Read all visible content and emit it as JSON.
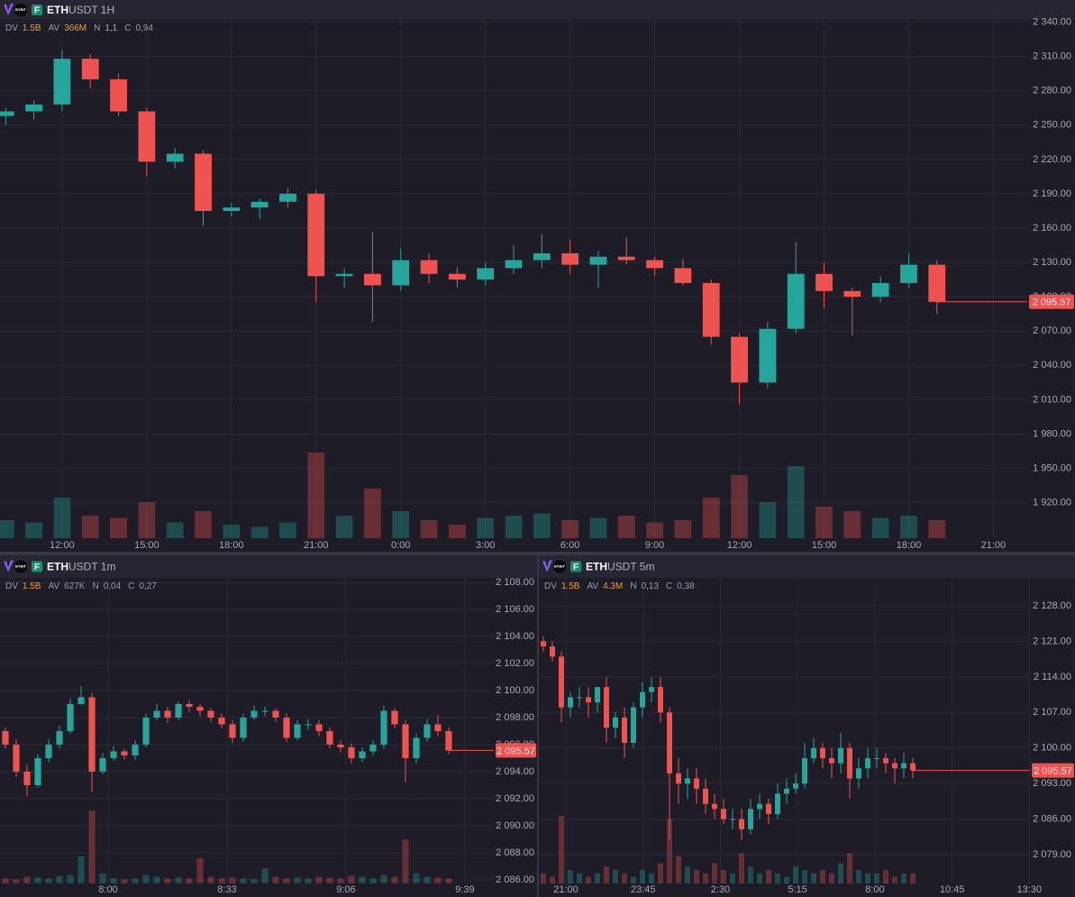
{
  "chart_data": [
    {
      "type": "candlestick",
      "exchange_logo": "BYBIT",
      "badge": "F",
      "symbol": "ETH",
      "title_rest": "USDT 1H",
      "stats": [
        {
          "label": "DV",
          "value": "1.5B",
          "color": "#f0a030"
        },
        {
          "label": "AV",
          "value": "366M",
          "color": "#f0a030"
        },
        {
          "label": "N",
          "value": "1,1",
          "color": "#f0a030"
        },
        {
          "label": "C",
          "value": "0,94",
          "color": "#9a9aaa"
        }
      ],
      "up_color": "#26a69a",
      "down_color": "#ef5350",
      "grid": true,
      "open": [
        2258,
        2262,
        2268,
        2308,
        2290,
        2262,
        2218,
        2225,
        2175,
        2178,
        2183,
        2190,
        2118,
        2120,
        2110,
        2132,
        2120,
        2115,
        2125,
        2132,
        2138,
        2128,
        2135,
        2132,
        2125,
        2112,
        2065,
        2025,
        2072,
        2120,
        2105,
        2100,
        2112,
        2128
      ],
      "high": [
        2265,
        2272,
        2316,
        2312,
        2295,
        2265,
        2230,
        2228,
        2182,
        2186,
        2195,
        2193,
        2125,
        2156,
        2142,
        2138,
        2126,
        2130,
        2145,
        2155,
        2150,
        2140,
        2152,
        2135,
        2133,
        2115,
        2068,
        2078,
        2148,
        2130,
        2108,
        2118,
        2138,
        2132
      ],
      "low": [
        2250,
        2255,
        2262,
        2282,
        2258,
        2205,
        2212,
        2162,
        2170,
        2168,
        2178,
        2095,
        2108,
        2078,
        2105,
        2112,
        2108,
        2110,
        2120,
        2125,
        2120,
        2108,
        2128,
        2118,
        2110,
        2058,
        2006,
        2020,
        2068,
        2090,
        2066,
        2095,
        2108,
        2085
      ],
      "close": [
        2262,
        2268,
        2308,
        2290,
        2262,
        2218,
        2225,
        2175,
        2178,
        2183,
        2190,
        2118,
        2120,
        2110,
        2132,
        2120,
        2115,
        2125,
        2132,
        2138,
        2128,
        2135,
        2132,
        2125,
        2112,
        2065,
        2025,
        2072,
        2120,
        2105,
        2100,
        2112,
        2128,
        2095.57
      ],
      "volume": [
        400,
        350,
        900,
        500,
        450,
        800,
        350,
        600,
        300,
        250,
        350,
        1900,
        500,
        1100,
        600,
        400,
        300,
        450,
        500,
        550,
        400,
        450,
        500,
        350,
        400,
        900,
        1400,
        800,
        1600,
        700,
        600,
        450,
        500,
        400
      ],
      "volume_ylim": [
        0,
        4000
      ],
      "xlim": [
        -0.2,
        36.2
      ],
      "xticks": [
        {
          "value": 2,
          "label": "12:00"
        },
        {
          "value": 5,
          "label": "15:00"
        },
        {
          "value": 8,
          "label": "18:00"
        },
        {
          "value": 11,
          "label": "21:00"
        },
        {
          "value": 14,
          "label": "0:00"
        },
        {
          "value": 17,
          "label": "3:00"
        },
        {
          "value": 20,
          "label": "6:00"
        },
        {
          "value": 23,
          "label": "9:00"
        },
        {
          "value": 26,
          "label": "12:00"
        },
        {
          "value": 29,
          "label": "15:00"
        },
        {
          "value": 32,
          "label": "18:00"
        },
        {
          "value": 35,
          "label": "21:00"
        }
      ],
      "ylim": [
        1889,
        2342
      ],
      "yticks": [
        {
          "value": 2340,
          "label": "2 340.00"
        },
        {
          "value": 2310,
          "label": "2 310.00"
        },
        {
          "value": 2280,
          "label": "2 280.00"
        },
        {
          "value": 2250,
          "label": "2 250.00"
        },
        {
          "value": 2220,
          "label": "2 220.00"
        },
        {
          "value": 2190,
          "label": "2 190.00"
        },
        {
          "value": 2160,
          "label": "2 160.00"
        },
        {
          "value": 2130,
          "label": "2 130.00"
        },
        {
          "value": 2100,
          "label": "2 100.00"
        },
        {
          "value": 2070,
          "label": "2 070.00"
        },
        {
          "value": 2040,
          "label": "2 040.00"
        },
        {
          "value": 2010,
          "label": "2 010.00"
        },
        {
          "value": 1980,
          "label": "1 980.00"
        },
        {
          "value": 1950,
          "label": "1 950.00"
        },
        {
          "value": 1920,
          "label": "1 920.00"
        }
      ],
      "last_price": {
        "value": 2095.57,
        "label": "2 095.57"
      }
    },
    {
      "type": "candlestick",
      "exchange_logo": "BYBIT",
      "badge": "F",
      "symbol": "ETH",
      "title_rest": "USDT 1m",
      "stats": [
        {
          "label": "DV",
          "value": "1.5B",
          "color": "#f0a030"
        },
        {
          "label": "AV",
          "value": "627K",
          "color": "#9a9aaa"
        },
        {
          "label": "N",
          "value": "0,04",
          "color": "#9a9aaa"
        },
        {
          "label": "C",
          "value": "0,27",
          "color": "#9a9aaa"
        }
      ],
      "up_color": "#26a69a",
      "down_color": "#ef5350",
      "grid": true,
      "open": [
        2097,
        2096,
        2094,
        2093,
        2095,
        2096,
        2097,
        2099,
        2099.5,
        2094,
        2095,
        2095.5,
        2095.2,
        2096,
        2098,
        2098.5,
        2098,
        2099,
        2098.8,
        2098.5,
        2098,
        2097.5,
        2096.5,
        2098,
        2098.5,
        2098.5,
        2098,
        2096.5,
        2097.5,
        2097.5,
        2097,
        2096,
        2095.8,
        2095,
        2095.5,
        2096,
        2098.5,
        2097.5,
        2095,
        2096.5,
        2097.5,
        2097
      ],
      "high": [
        2097.3,
        2096.4,
        2094.5,
        2095.3,
        2096.4,
        2097.4,
        2099.4,
        2100.3,
        2099.8,
        2095.4,
        2095.9,
        2095.7,
        2096.3,
        2098.3,
        2099,
        2098.8,
        2099.2,
        2099.3,
        2099,
        2098.7,
        2098.3,
        2097.8,
        2098.3,
        2098.9,
        2098.8,
        2098.7,
        2098.3,
        2097.8,
        2097.9,
        2097.8,
        2097.3,
        2096.3,
        2096.1,
        2095.8,
        2096.3,
        2098.9,
        2098.7,
        2097.8,
        2096.8,
        2097.9,
        2098.2,
        2097.3
      ],
      "low": [
        2095.7,
        2093.6,
        2092.2,
        2092.8,
        2094.7,
        2095.7,
        2096.8,
        2099,
        2092.5,
        2093.8,
        2094.8,
        2094.9,
        2094.9,
        2095.8,
        2097.8,
        2097.6,
        2097.8,
        2098.4,
        2098.1,
        2097.7,
        2097.2,
        2096.1,
        2096.2,
        2097.8,
        2098.1,
        2097.7,
        2096.2,
        2096.3,
        2097.1,
        2096.6,
        2095.7,
        2095.4,
        2094.6,
        2094.7,
        2095.2,
        2095.7,
        2097.2,
        2093.2,
        2094.6,
        2096.2,
        2096.6,
        2095.3
      ],
      "close": [
        2096,
        2094,
        2093,
        2095,
        2096,
        2097,
        2099,
        2099.5,
        2094,
        2095,
        2095.5,
        2095.2,
        2096,
        2098,
        2098.5,
        2098,
        2099,
        2098.8,
        2098.5,
        2098,
        2097.5,
        2096.5,
        2098,
        2098.5,
        2098.5,
        2098,
        2096.5,
        2097.5,
        2097.5,
        2097,
        2096,
        2095.8,
        2095,
        2095.5,
        2096,
        2098.5,
        2097.5,
        2095,
        2096.5,
        2097.5,
        2097,
        2095.57
      ],
      "volume": [
        300,
        250,
        400,
        350,
        300,
        450,
        500,
        1600,
        4300,
        600,
        300,
        250,
        300,
        500,
        400,
        300,
        350,
        300,
        1500,
        400,
        300,
        350,
        300,
        250,
        900,
        400,
        300,
        350,
        300,
        400,
        350,
        300,
        450,
        400,
        300,
        500,
        400,
        2600,
        600,
        400,
        350,
        300
      ],
      "volume_ylim": [
        0,
        8000
      ],
      "xlim": [
        -0.5,
        45.17
      ],
      "xticks": [
        {
          "value": 9.5,
          "label": "8:00"
        },
        {
          "value": 20.5,
          "label": "8:33"
        },
        {
          "value": 31.5,
          "label": "9:06"
        },
        {
          "value": 42.5,
          "label": "9:39"
        }
      ],
      "ylim": [
        2085.73,
        2108.33
      ],
      "yticks": [
        {
          "value": 2108,
          "label": "2 108.00"
        },
        {
          "value": 2106,
          "label": "2 106.00"
        },
        {
          "value": 2104,
          "label": "2 104.00"
        },
        {
          "value": 2102,
          "label": "2 102.00"
        },
        {
          "value": 2100,
          "label": "2 100.00"
        },
        {
          "value": 2098,
          "label": "2 098.00"
        },
        {
          "value": 2096,
          "label": "2 096.00"
        },
        {
          "value": 2094,
          "label": "2 094.00"
        },
        {
          "value": 2092,
          "label": "2 092.00"
        },
        {
          "value": 2090,
          "label": "2 090.00"
        },
        {
          "value": 2088,
          "label": "2 088.00"
        },
        {
          "value": 2086,
          "label": "2 086.00"
        }
      ],
      "last_price": {
        "value": 2095.57,
        "label": "2 095.57"
      }
    },
    {
      "type": "candlestick",
      "exchange_logo": "BYBIT",
      "badge": "F",
      "symbol": "ETH",
      "title_rest": "USDT 5m",
      "stats": [
        {
          "label": "DV",
          "value": "1.5B",
          "color": "#f0a030"
        },
        {
          "label": "AV",
          "value": "4.3M",
          "color": "#f0a030"
        },
        {
          "label": "N",
          "value": "0,13",
          "color": "#9a9aaa"
        },
        {
          "label": "C",
          "value": "0,38",
          "color": "#9a9aaa"
        }
      ],
      "up_color": "#26a69a",
      "down_color": "#ef5350",
      "grid": true,
      "open": [
        2121,
        2120,
        2118,
        2108,
        2110,
        2110,
        2109,
        2112,
        2104,
        2106,
        2101,
        2108,
        2111,
        2112,
        2107,
        2095,
        2093,
        2094,
        2092,
        2089,
        2088,
        2086,
        2086,
        2084,
        2088,
        2089,
        2087,
        2091,
        2092,
        2093,
        2098,
        2100,
        2098,
        2097,
        2100,
        2094,
        2096,
        2098,
        2098,
        2097,
        2096,
        2097
      ],
      "high": [
        2122,
        2121,
        2119,
        2111,
        2112,
        2112,
        2112,
        2114,
        2107,
        2108,
        2109,
        2113,
        2114,
        2114,
        2108,
        2098,
        2096,
        2096,
        2094,
        2091,
        2090,
        2088,
        2088,
        2090,
        2091,
        2090,
        2093,
        2094,
        2095,
        2101,
        2102,
        2101,
        2100,
        2103,
        2101,
        2098,
        2100,
        2100,
        2099,
        2098,
        2099,
        2098
      ],
      "low": [
        2119,
        2117,
        2105,
        2106,
        2108,
        2106,
        2107,
        2101,
        2102,
        2098,
        2100,
        2106,
        2109,
        2105,
        2082,
        2089,
        2090,
        2089,
        2087,
        2086,
        2085,
        2084,
        2082,
        2083,
        2086,
        2085,
        2086,
        2089,
        2091,
        2092,
        2097,
        2096,
        2094,
        2095,
        2090,
        2092,
        2094,
        2096,
        2095,
        2093,
        2094,
        2094
      ],
      "close": [
        2120,
        2118,
        2108,
        2110,
        2110,
        2109,
        2112,
        2104,
        2106,
        2101,
        2108,
        2111,
        2112,
        2107,
        2095,
        2093,
        2094,
        2092,
        2089,
        2088,
        2086,
        2086,
        2084,
        2088,
        2089,
        2087,
        2091,
        2092,
        2093,
        2098,
        2100,
        2098,
        2097,
        2100,
        2094,
        2096,
        2098,
        2098,
        2097,
        2096,
        2097,
        2095.57
      ],
      "volume": [
        3,
        2,
        20,
        4,
        3,
        2,
        3,
        5,
        4,
        3,
        2,
        4,
        3,
        6,
        19,
        8,
        5,
        4,
        3,
        6,
        4,
        3,
        9,
        5,
        3,
        4,
        3,
        2,
        5,
        4,
        3,
        4,
        3,
        6,
        9,
        4,
        3,
        3,
        4,
        2,
        3,
        3
      ],
      "volume_ylim": [
        0,
        40
      ],
      "xlim": [
        -0.5,
        54
      ],
      "xticks": [
        {
          "value": 2.5,
          "label": "21:00"
        },
        {
          "value": 11.07,
          "label": "23:45"
        },
        {
          "value": 19.64,
          "label": "2:30"
        },
        {
          "value": 28.21,
          "label": "5:15"
        },
        {
          "value": 36.79,
          "label": "8:00"
        },
        {
          "value": 45.36,
          "label": "10:45"
        },
        {
          "value": 53.93,
          "label": "13:30"
        }
      ],
      "ylim": [
        2073.32,
        2133.5
      ],
      "yticks": [
        {
          "value": 2128,
          "label": "2 128.00"
        },
        {
          "value": 2121,
          "label": "2 121.00"
        },
        {
          "value": 2114,
          "label": "2 114.00"
        },
        {
          "value": 2107,
          "label": "2 107.00"
        },
        {
          "value": 2100,
          "label": "2 100.00"
        },
        {
          "value": 2093,
          "label": "2 093.00"
        },
        {
          "value": 2086,
          "label": "2 086.00"
        },
        {
          "value": 2079,
          "label": "2 079.00"
        }
      ],
      "last_price": {
        "value": 2095.57,
        "label": "2 095.57"
      }
    }
  ]
}
